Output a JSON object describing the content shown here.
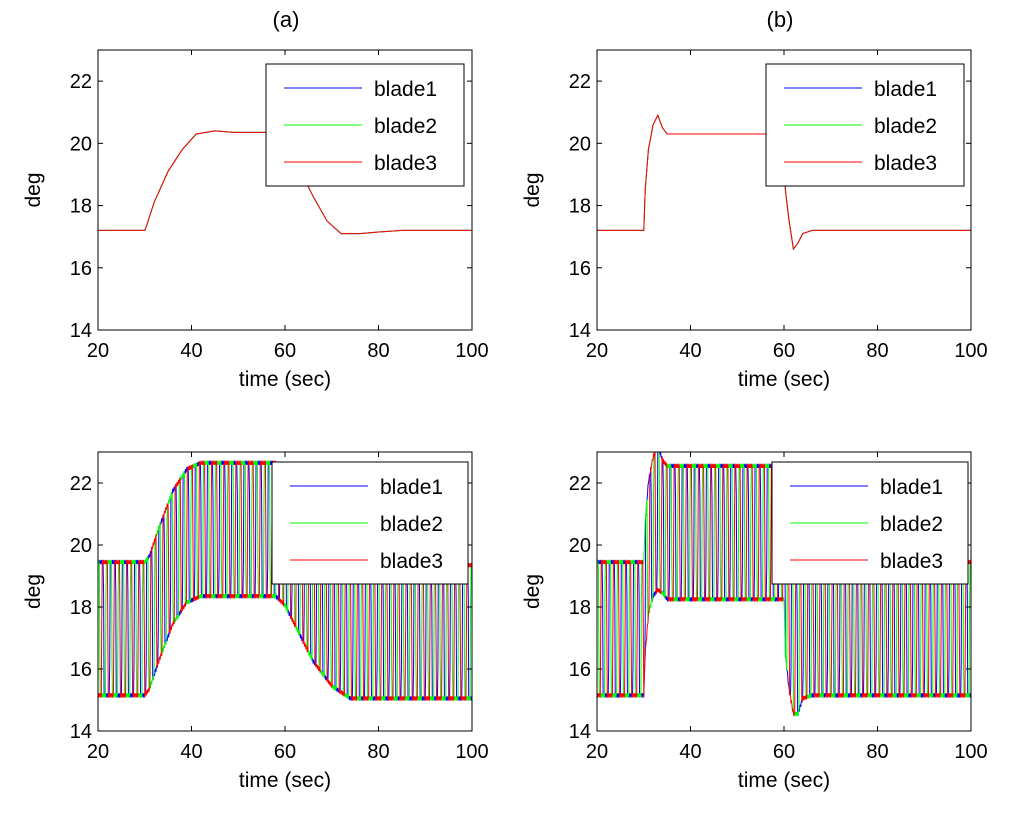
{
  "column_titles": [
    "(a)",
    "(b)"
  ],
  "chart_data": [
    {
      "type": "line",
      "panel": "top-left",
      "title": "(a)",
      "xlabel": "time (sec)",
      "ylabel": "deg",
      "xlim": [
        20,
        100
      ],
      "ylim": [
        14,
        23
      ],
      "xticks": [
        20,
        40,
        60,
        80,
        100
      ],
      "yticks": [
        14,
        16,
        18,
        20,
        22
      ],
      "legend_position": "top-right",
      "series": [
        {
          "name": "blade1",
          "color": "#0000ff",
          "x": [
            20,
            30,
            30.5,
            32,
            35,
            38,
            41,
            45,
            49,
            58,
            60,
            63,
            66,
            69,
            72,
            76,
            80,
            85,
            90,
            100
          ],
          "y": [
            17.2,
            17.2,
            17.4,
            18.1,
            19.1,
            19.8,
            20.3,
            20.4,
            20.35,
            20.35,
            20.0,
            19.2,
            18.3,
            17.5,
            17.1,
            17.1,
            17.15,
            17.2,
            17.2,
            17.2
          ]
        },
        {
          "name": "blade2",
          "color": "#00ff00",
          "x": [
            20,
            30,
            30.5,
            32,
            35,
            38,
            41,
            45,
            49,
            58,
            60,
            63,
            66,
            69,
            72,
            76,
            80,
            85,
            90,
            100
          ],
          "y": [
            17.2,
            17.2,
            17.4,
            18.1,
            19.1,
            19.8,
            20.3,
            20.4,
            20.35,
            20.35,
            20.0,
            19.2,
            18.3,
            17.5,
            17.1,
            17.1,
            17.15,
            17.2,
            17.2,
            17.2
          ]
        },
        {
          "name": "blade3",
          "color": "#ff0000",
          "x": [
            20,
            30,
            30.5,
            32,
            35,
            38,
            41,
            45,
            49,
            58,
            60,
            63,
            66,
            69,
            72,
            76,
            80,
            85,
            90,
            100
          ],
          "y": [
            17.2,
            17.2,
            17.4,
            18.1,
            19.1,
            19.8,
            20.3,
            20.4,
            20.35,
            20.35,
            20.0,
            19.2,
            18.3,
            17.5,
            17.1,
            17.1,
            17.15,
            17.2,
            17.2,
            17.2
          ]
        }
      ]
    },
    {
      "type": "line",
      "panel": "top-right",
      "title": "(b)",
      "xlabel": "time (sec)",
      "ylabel": "deg",
      "xlim": [
        20,
        100
      ],
      "ylim": [
        14,
        23
      ],
      "xticks": [
        20,
        40,
        60,
        80,
        100
      ],
      "yticks": [
        14,
        16,
        18,
        20,
        22
      ],
      "legend_position": "top-right",
      "series": [
        {
          "name": "blade1",
          "color": "#0000ff",
          "x": [
            20,
            30,
            30.3,
            31,
            32,
            33,
            34,
            35,
            37,
            40,
            50,
            60,
            60.3,
            61,
            62,
            63,
            64,
            66,
            70,
            80,
            100
          ],
          "y": [
            17.2,
            17.2,
            18.5,
            19.8,
            20.6,
            20.9,
            20.5,
            20.3,
            20.3,
            20.3,
            20.3,
            20.3,
            18.5,
            17.6,
            16.6,
            16.8,
            17.1,
            17.2,
            17.2,
            17.2,
            17.2
          ]
        },
        {
          "name": "blade2",
          "color": "#00ff00",
          "x": [
            20,
            30,
            30.3,
            31,
            32,
            33,
            34,
            35,
            37,
            40,
            50,
            60,
            60.3,
            61,
            62,
            63,
            64,
            66,
            70,
            80,
            100
          ],
          "y": [
            17.2,
            17.2,
            18.5,
            19.8,
            20.6,
            20.9,
            20.5,
            20.3,
            20.3,
            20.3,
            20.3,
            20.3,
            18.5,
            17.6,
            16.6,
            16.8,
            17.1,
            17.2,
            17.2,
            17.2,
            17.2
          ]
        },
        {
          "name": "blade3",
          "color": "#ff0000",
          "x": [
            20,
            30,
            30.3,
            31,
            32,
            33,
            34,
            35,
            37,
            40,
            50,
            60,
            60.3,
            61,
            62,
            63,
            64,
            66,
            70,
            80,
            100
          ],
          "y": [
            17.2,
            17.2,
            18.5,
            19.8,
            20.6,
            20.9,
            20.5,
            20.3,
            20.3,
            20.3,
            20.3,
            20.3,
            18.5,
            17.6,
            16.6,
            16.8,
            17.1,
            17.2,
            17.2,
            17.2,
            17.2
          ]
        }
      ]
    },
    {
      "type": "line",
      "panel": "bottom-left",
      "title": "",
      "xlabel": "time (sec)",
      "ylabel": "deg",
      "xlim": [
        20,
        100
      ],
      "ylim": [
        14,
        23
      ],
      "xticks": [
        20,
        40,
        60,
        80,
        100
      ],
      "yticks": [
        14,
        16,
        18,
        20,
        22
      ],
      "legend_position": "top-right",
      "series": [
        {
          "name": "blade1",
          "color": "#0000ff",
          "period_sec": 2.6,
          "phase": 0.0,
          "center_x": [
            20,
            30,
            31,
            33,
            36,
            39,
            42,
            45,
            50,
            58,
            60,
            63,
            66,
            70,
            74,
            80,
            90,
            100
          ],
          "center_y": [
            17.3,
            17.3,
            17.5,
            18.4,
            19.6,
            20.3,
            20.5,
            20.5,
            20.5,
            20.5,
            20.2,
            19.3,
            18.4,
            17.6,
            17.2,
            17.2,
            17.2,
            17.2
          ],
          "amp_x": [
            20,
            100
          ],
          "amp_y": [
            2.1,
            2.1
          ]
        },
        {
          "name": "blade2",
          "color": "#00ff00",
          "period_sec": 2.6,
          "phase": 0.3333,
          "center_x": [
            20,
            30,
            31,
            33,
            36,
            39,
            42,
            45,
            50,
            58,
            60,
            63,
            66,
            70,
            74,
            80,
            90,
            100
          ],
          "center_y": [
            17.3,
            17.3,
            17.5,
            18.4,
            19.6,
            20.3,
            20.5,
            20.5,
            20.5,
            20.5,
            20.2,
            19.3,
            18.4,
            17.6,
            17.2,
            17.2,
            17.2,
            17.2
          ],
          "amp_x": [
            20,
            100
          ],
          "amp_y": [
            2.1,
            2.1
          ]
        },
        {
          "name": "blade3",
          "color": "#ff0000",
          "period_sec": 2.6,
          "phase": 0.6667,
          "center_x": [
            20,
            30,
            31,
            33,
            36,
            39,
            42,
            45,
            50,
            58,
            60,
            63,
            66,
            70,
            74,
            80,
            90,
            100
          ],
          "center_y": [
            17.3,
            17.3,
            17.5,
            18.4,
            19.6,
            20.3,
            20.5,
            20.5,
            20.5,
            20.5,
            20.2,
            19.3,
            18.4,
            17.6,
            17.2,
            17.2,
            17.2,
            17.2
          ],
          "amp_x": [
            20,
            100
          ],
          "amp_y": [
            2.1,
            2.1
          ]
        }
      ]
    },
    {
      "type": "line",
      "panel": "bottom-right",
      "title": "",
      "xlabel": "time (sec)",
      "ylabel": "deg",
      "xlim": [
        20,
        100
      ],
      "ylim": [
        14,
        23
      ],
      "xticks": [
        20,
        40,
        60,
        80,
        100
      ],
      "yticks": [
        14,
        16,
        18,
        20,
        22
      ],
      "legend_position": "top-right",
      "series": [
        {
          "name": "blade1",
          "color": "#0000ff",
          "period_sec": 2.6,
          "phase": 0.0,
          "center_x": [
            20,
            30,
            30.3,
            31,
            32,
            33,
            34,
            35,
            37,
            40,
            50,
            60,
            60.3,
            61,
            62,
            63,
            64,
            66,
            70,
            80,
            100
          ],
          "center_y": [
            17.3,
            17.3,
            18.6,
            19.9,
            20.6,
            20.9,
            20.6,
            20.4,
            20.4,
            20.4,
            20.4,
            20.4,
            18.6,
            17.6,
            16.7,
            16.9,
            17.2,
            17.3,
            17.3,
            17.3,
            17.3
          ],
          "amp_x": [
            20,
            31,
            33,
            34,
            60,
            62,
            63,
            64,
            100
          ],
          "amp_y": [
            2.1,
            2.1,
            2.3,
            2.1,
            2.1,
            2.1,
            2.3,
            2.1,
            2.1
          ]
        },
        {
          "name": "blade2",
          "color": "#00ff00",
          "period_sec": 2.6,
          "phase": 0.3333,
          "center_x": [
            20,
            30,
            30.3,
            31,
            32,
            33,
            34,
            35,
            37,
            40,
            50,
            60,
            60.3,
            61,
            62,
            63,
            64,
            66,
            70,
            80,
            100
          ],
          "center_y": [
            17.3,
            17.3,
            18.6,
            19.9,
            20.6,
            20.9,
            20.6,
            20.4,
            20.4,
            20.4,
            20.4,
            20.4,
            18.6,
            17.6,
            16.7,
            16.9,
            17.2,
            17.3,
            17.3,
            17.3,
            17.3
          ],
          "amp_x": [
            20,
            31,
            33,
            34,
            60,
            62,
            63,
            64,
            100
          ],
          "amp_y": [
            2.1,
            2.1,
            2.3,
            2.1,
            2.1,
            2.1,
            2.3,
            2.1,
            2.1
          ]
        },
        {
          "name": "blade3",
          "color": "#ff0000",
          "period_sec": 2.6,
          "phase": 0.6667,
          "center_x": [
            20,
            30,
            30.3,
            31,
            32,
            33,
            34,
            35,
            37,
            40,
            50,
            60,
            60.3,
            61,
            62,
            63,
            64,
            66,
            70,
            80,
            100
          ],
          "center_y": [
            17.3,
            17.3,
            18.6,
            19.9,
            20.6,
            20.9,
            20.6,
            20.4,
            20.4,
            20.4,
            20.4,
            20.4,
            18.6,
            17.6,
            16.7,
            16.9,
            17.2,
            17.3,
            17.3,
            17.3,
            17.3
          ],
          "amp_x": [
            20,
            31,
            33,
            34,
            60,
            62,
            63,
            64,
            100
          ],
          "amp_y": [
            2.1,
            2.1,
            2.3,
            2.1,
            2.1,
            2.1,
            2.3,
            2.1,
            2.1
          ]
        }
      ]
    }
  ]
}
